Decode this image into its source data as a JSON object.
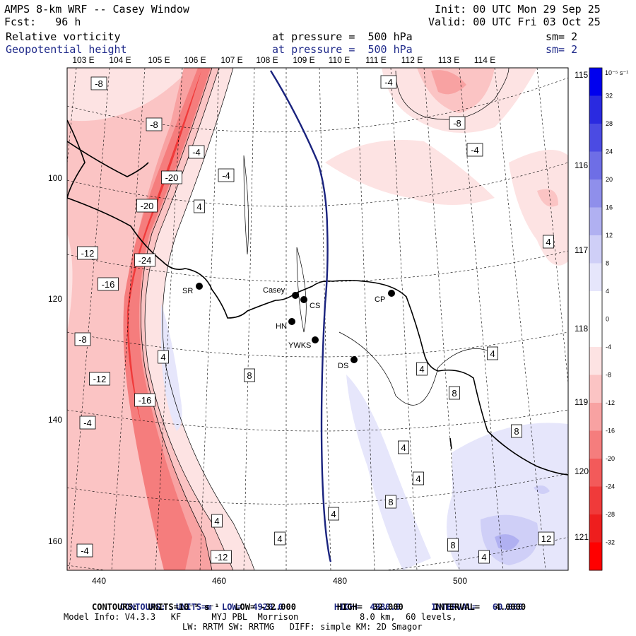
{
  "header": {
    "title": "AMPS 8-km WRF -- Casey Window",
    "forecast": "Fcst:   96 h",
    "init": "Init: 00 UTC Mon 29 Sep 25",
    "valid": "Valid: 00 UTC Fri 03 Oct 25",
    "field1_name": "Relative vorticity",
    "field1_level": "at pressure =  500 hPa",
    "field1_sm": "sm= 2",
    "field2_name": "Geopotential height",
    "field2_level": "at pressure =  500 hPa",
    "field2_sm": "sm= 2"
  },
  "map": {
    "x_ticks": [
      "440",
      "460",
      "480",
      "500"
    ],
    "y_ticks": [
      "100",
      "120",
      "140",
      "160"
    ],
    "top_longitudes": [
      "103 E",
      "104 E",
      "105 E",
      "106 E",
      "107 E",
      "108 E",
      "109 E",
      "110 E",
      "111 E",
      "112 E",
      "113 E",
      "114 E"
    ],
    "right_longitudes": [
      "115 E",
      "116 E",
      "117 E",
      "118 E",
      "119 E",
      "120 E",
      "121 E"
    ],
    "stations": [
      {
        "name": "SR"
      },
      {
        "name": "Casey"
      },
      {
        "name": "CS"
      },
      {
        "name": "HN"
      },
      {
        "name": "YWKS"
      },
      {
        "name": "DS"
      },
      {
        "name": "CP"
      }
    ],
    "contour_labels": [
      "-8",
      "-8",
      "-4",
      "-20",
      "-20",
      "-12",
      "-24",
      "-16",
      "-8",
      "-12",
      "-16",
      "-4",
      "-4",
      "-12",
      "-4",
      "-8",
      "-4",
      "-4",
      "4",
      "4",
      "8",
      "4",
      "4",
      "4",
      "4",
      "4",
      "8",
      "4",
      "8",
      "4",
      "4",
      "8",
      "8",
      "4",
      "12"
    ],
    "colors": {
      "height_contour": "#1a237e",
      "coast": "#000000",
      "neg_shades": [
        "#fde3e3",
        "#fbc4c4",
        "#f8a2a2",
        "#f57d7d",
        "#f35a5a",
        "#f03a3a",
        "#ee1e1e",
        "#ff0000"
      ],
      "pos_shades": [
        "#e6e6fb",
        "#cfcff7",
        "#b0b0f1",
        "#8f8feb",
        "#6e6ee6",
        "#4b4be3",
        "#2a2ae0",
        "#0000ee"
      ]
    }
  },
  "colorbar": {
    "units": "10⁻⁵ s⁻¹",
    "ticks": [
      "32",
      "28",
      "24",
      "20",
      "16",
      "12",
      "8",
      "4",
      "0",
      "-4",
      "-8",
      "-12",
      "-16",
      "-20",
      "-24",
      "-28",
      "-32"
    ]
  },
  "footer": {
    "line1_label": "CONTOURS:",
    "line1_units": "UNITS=m",
    "line1_low": "LOW=  4920.0",
    "line1_high": "HIGH=  4980.0",
    "line1_interval": "INTERVAL=   60.000",
    "line2": "CONTOURS:  UNITS=10⁻⁵ s⁻¹   LOW= -32.000        HIGH=  32.000      INTERVAL=   4.0000",
    "line3": "Model Info: V4.3.3   KF      MYJ PBL  Morrison            8.0 km,  60 levels,",
    "line4": "LW: RRTM SW: RRTMG   DIFF: simple KM: 2D Smagor"
  }
}
